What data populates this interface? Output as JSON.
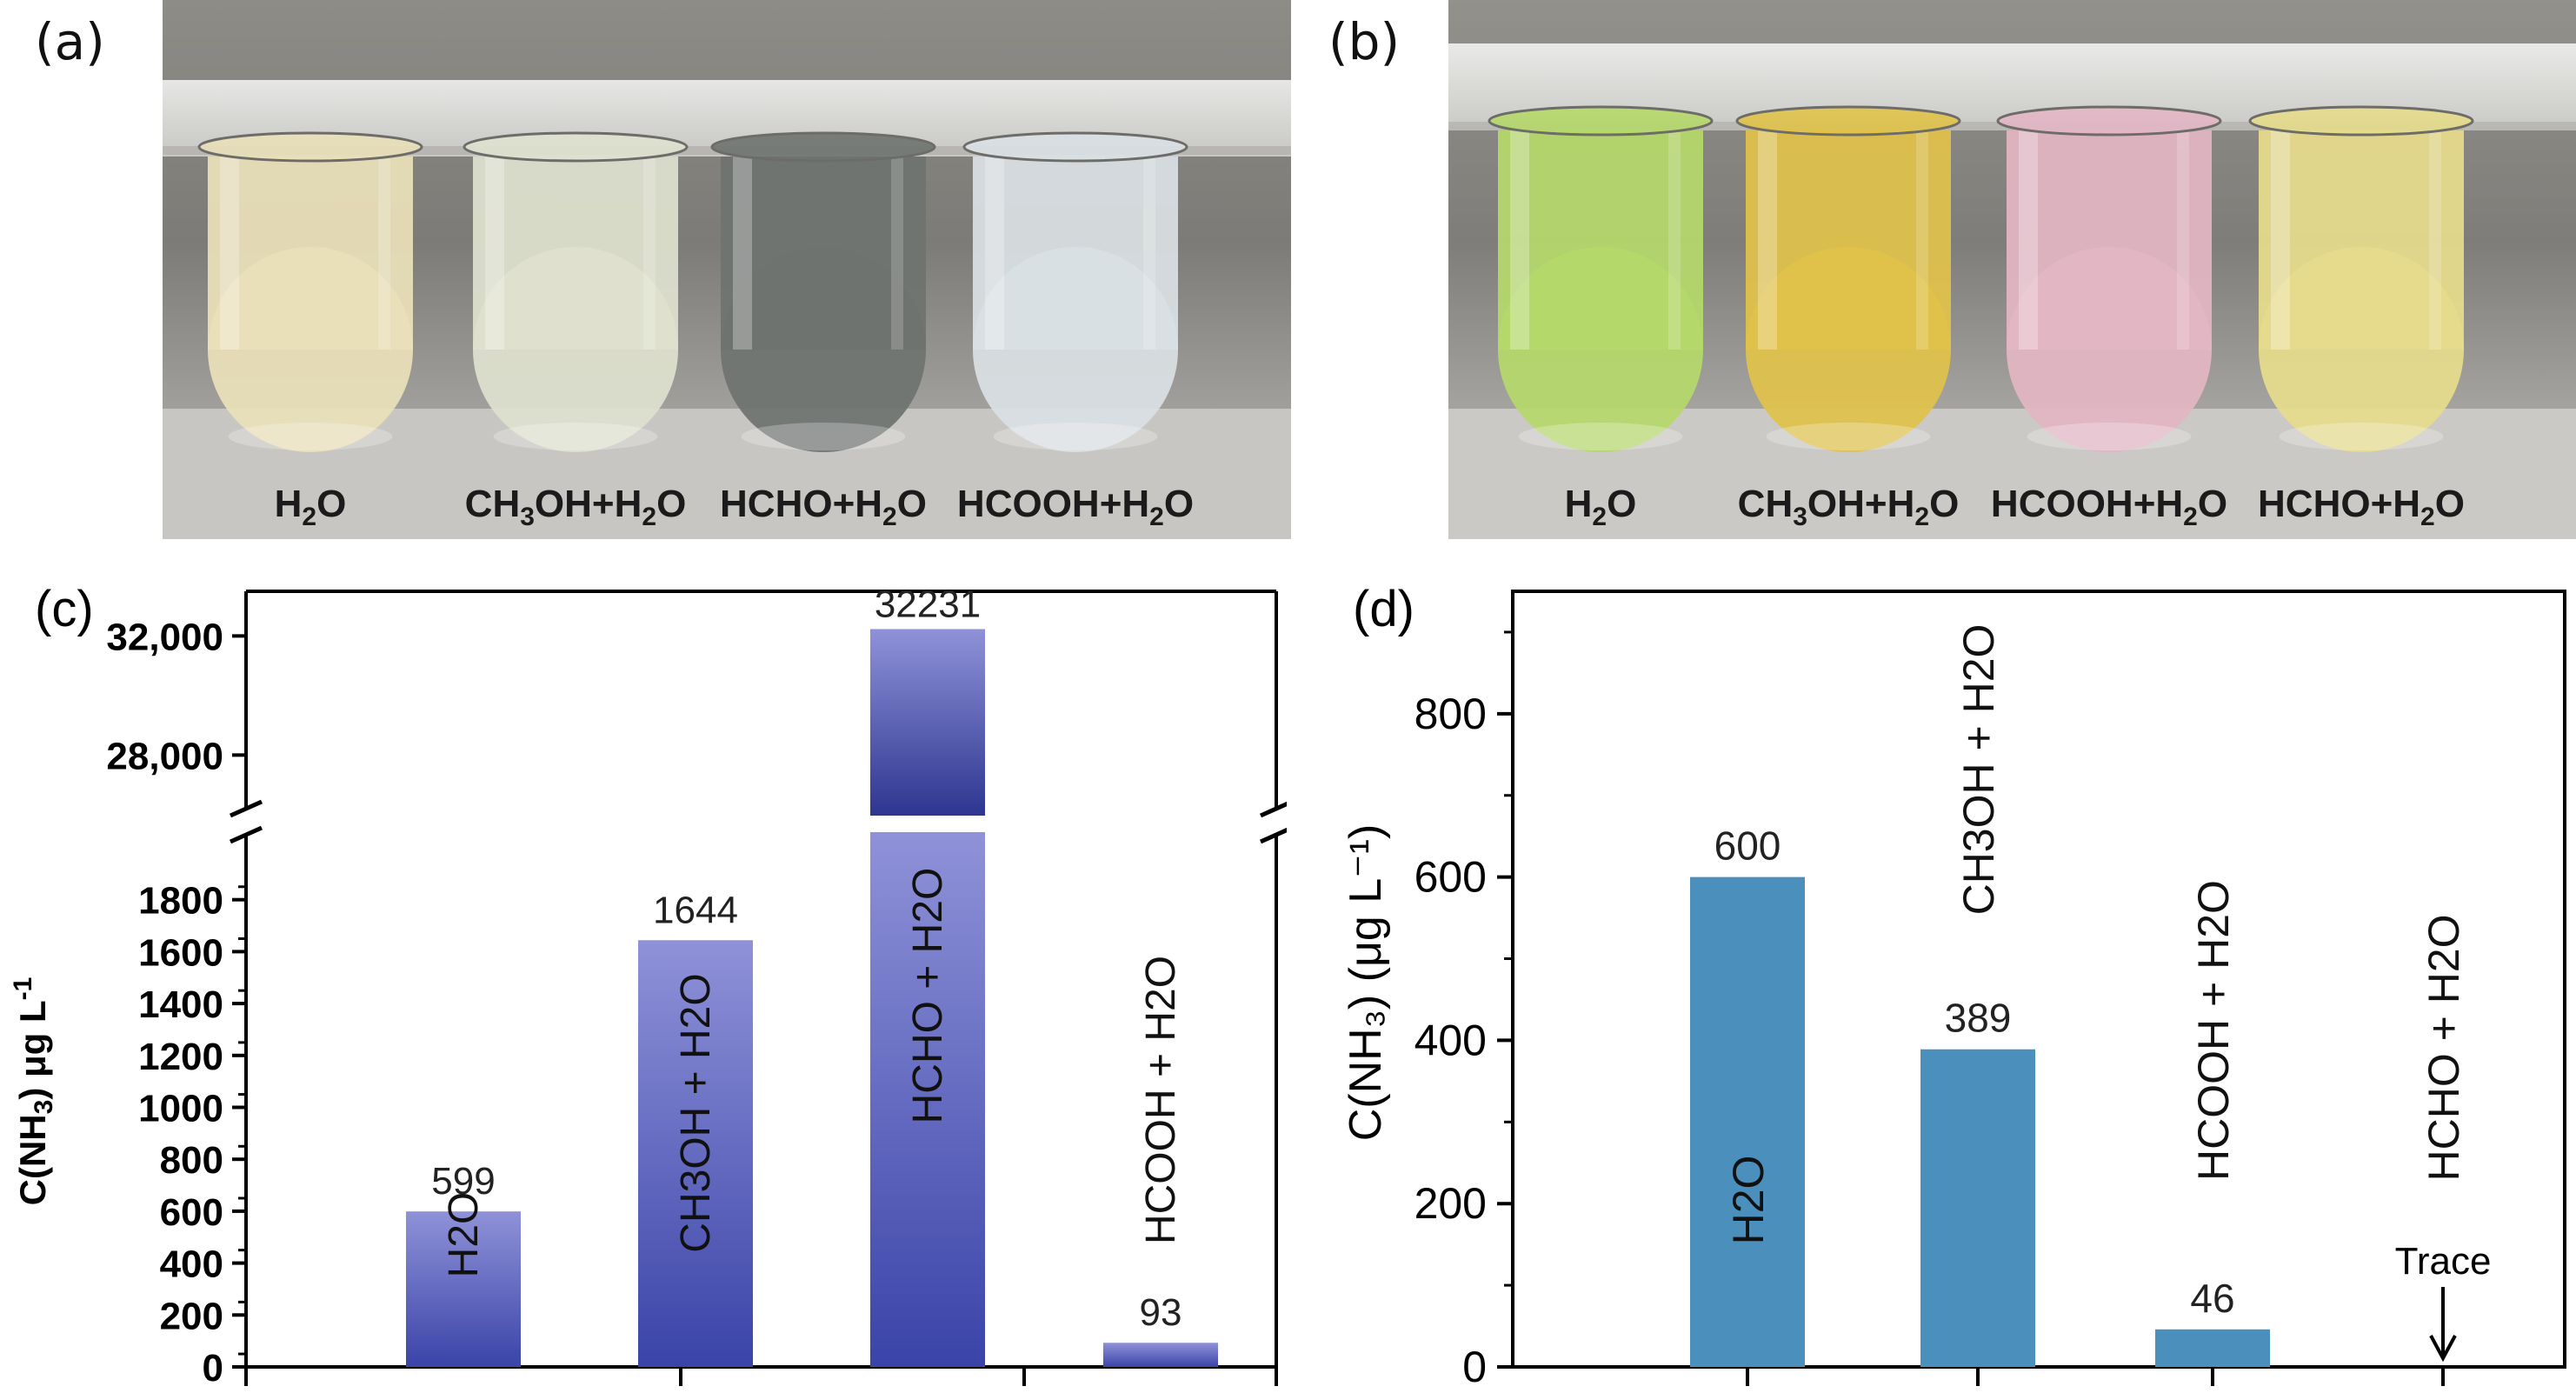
{
  "panel_a": {
    "letter": "(a)",
    "tubes": [
      {
        "label_main": "H",
        "label_sub": "2",
        "label_rest": "O",
        "liquid_color": "#e9e0b9"
      },
      {
        "label_main": "CH",
        "label_sub": "3",
        "label_rest": "OH+H",
        "label_sub2": "2",
        "label_rest2": "O",
        "liquid_color": "#dfe1cf"
      },
      {
        "label_main": "HCHO+H",
        "label_sub": "2",
        "label_rest": "O",
        "liquid_color": "#6f7370"
      },
      {
        "label_main": "HCOOH+H",
        "label_sub": "2",
        "label_rest": "O",
        "liquid_color": "#d9e0e3"
      }
    ]
  },
  "panel_b": {
    "letter": "(b)",
    "tubes": [
      {
        "label_main": "H",
        "label_sub": "2",
        "label_rest": "O",
        "liquid_color": "#b5d86a"
      },
      {
        "label_main": "CH",
        "label_sub": "3",
        "label_rest": "OH+H",
        "label_sub2": "2",
        "label_rest2": "O",
        "liquid_color": "#e0c24a"
      },
      {
        "label_main": "HCOOH+H",
        "label_sub": "2",
        "label_rest": "O",
        "liquid_color": "#e3b6c4"
      },
      {
        "label_main": "HCHO+H",
        "label_sub": "2",
        "label_rest": "O",
        "liquid_color": "#e6dc8c"
      }
    ]
  },
  "chart_data": [
    {
      "panel": "(c)",
      "type": "bar",
      "ylabel_main": "C(NH",
      "ylabel_sub": "3",
      "ylabel_unit": ") μg L",
      "ylabel_sup": "-1",
      "broken_axis": true,
      "lower_ylim": [
        0,
        2000
      ],
      "upper_ylim": [
        26200,
        33500
      ],
      "lower_ticks": [
        "0",
        "200",
        "400",
        "600",
        "800",
        "1000",
        "1200",
        "1400",
        "1600",
        "1800"
      ],
      "upper_ticks": [
        "28,000",
        "32,000"
      ],
      "categories": [
        "H2O",
        "CH3OH + H2O",
        "HCHO + H2O",
        "HCOOH + H2O"
      ],
      "values": [
        599,
        1644,
        32231,
        93
      ],
      "value_labels": [
        "599",
        "1644",
        "32231",
        "93"
      ],
      "bar_color": "#3a44a8"
    },
    {
      "panel": "(d)",
      "type": "bar",
      "ylabel": "C(NH₃) (μg L⁻¹)",
      "ylim": [
        0,
        950
      ],
      "ticks": [
        "0",
        "200",
        "400",
        "600",
        "800"
      ],
      "categories": [
        "H2O",
        "CH3OH + H2O",
        "HCOOH + H2O",
        "HCHO + H2O"
      ],
      "values": [
        600,
        389,
        46,
        0
      ],
      "value_labels": [
        "600",
        "389",
        "46",
        ""
      ],
      "annotation": "Trace",
      "bar_color": "#4b8fbc"
    }
  ]
}
